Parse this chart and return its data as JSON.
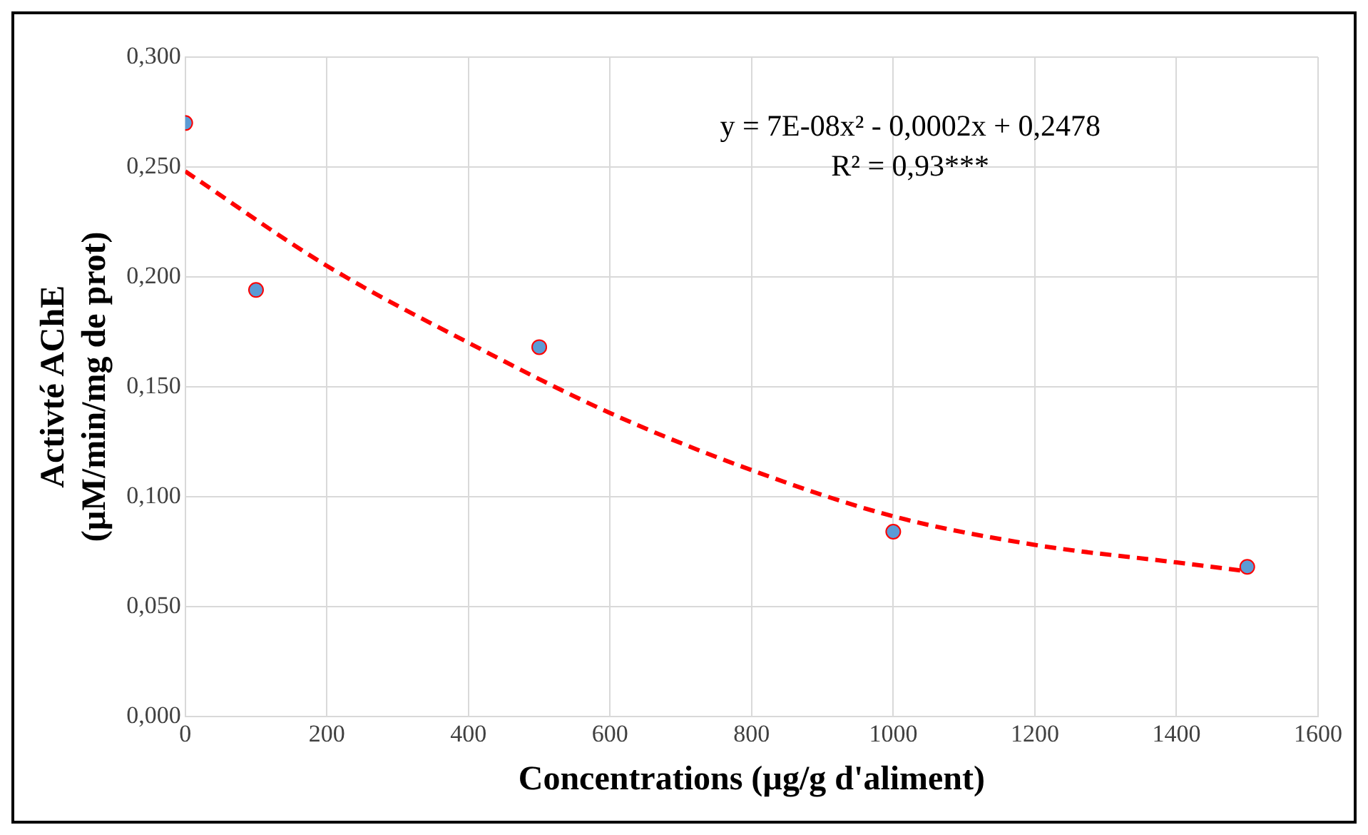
{
  "chart_data": {
    "type": "scatter",
    "xlabel": "Concentrations (µg/g d'aliment)",
    "ylabel": "Activté AChE\n(µM/min/mg de prot)",
    "annotations": [
      "y = 7E-08x² - 0,0002x + 0,2478",
      "R² = 0,93***"
    ],
    "xlim": [
      0,
      1600
    ],
    "xticks": [
      0,
      200,
      400,
      600,
      800,
      1000,
      1200,
      1400,
      1600
    ],
    "ylim": [
      0,
      0.3
    ],
    "yticks": [
      {
        "value": 0,
        "label": "0,000"
      },
      {
        "value": 0.05,
        "label": "0,050"
      },
      {
        "value": 0.1,
        "label": "0,100"
      },
      {
        "value": 0.15,
        "label": "0,150"
      },
      {
        "value": 0.2,
        "label": "0,200"
      },
      {
        "value": 0.25,
        "label": "0,250"
      },
      {
        "value": 0.3,
        "label": "0,300"
      }
    ],
    "grid": true,
    "legend": false,
    "series": [
      {
        "type": "scatter",
        "color": "#5b9bd5",
        "marker": "circle",
        "x": [
          0,
          100,
          500,
          1000,
          1500
        ],
        "values": [
          0.27,
          0.194,
          0.168,
          0.084,
          0.068
        ]
      },
      {
        "type": "line",
        "color": "#ff0000",
        "line_style": "dashed",
        "marker": "none",
        "x": [
          0,
          200,
          400,
          600,
          800,
          1000,
          1200,
          1400,
          1500
        ],
        "values": [
          0.248,
          0.205,
          0.17,
          0.138,
          0.112,
          0.091,
          0.078,
          0.07,
          0.066
        ]
      }
    ]
  }
}
